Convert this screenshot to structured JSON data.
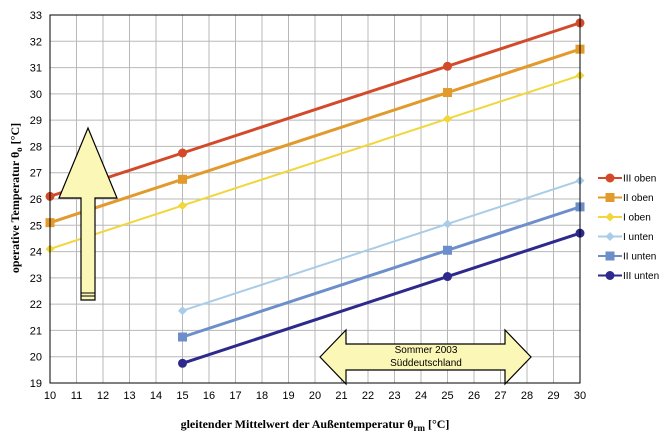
{
  "chart_data": {
    "type": "line",
    "xlabel_main": "gleitender Mittelwert der Außentemperatur θ",
    "xlabel_sub": "rm",
    "xlabel_unit": " [°C]",
    "ylabel_main": "operative Temperatur θ",
    "ylabel_sub": "o",
    "ylabel_unit": " [°C]",
    "xlim": [
      10,
      30
    ],
    "ylim": [
      19,
      33
    ],
    "x_ticks": [
      10,
      11,
      12,
      13,
      14,
      15,
      16,
      17,
      18,
      19,
      20,
      21,
      22,
      23,
      24,
      25,
      26,
      27,
      28,
      29,
      30
    ],
    "y_ticks": [
      19,
      20,
      21,
      22,
      23,
      24,
      25,
      26,
      27,
      28,
      29,
      30,
      31,
      32,
      33
    ],
    "grid": true,
    "legend_position": "right",
    "series": [
      {
        "name": "III oben",
        "color": "#d24a2a",
        "marker": "circle",
        "width": 3,
        "x": [
          10,
          15,
          25,
          30
        ],
        "y": [
          26.1,
          27.75,
          31.05,
          32.7
        ]
      },
      {
        "name": "II  oben",
        "color": "#e39a2c",
        "marker": "square",
        "width": 3,
        "x": [
          10,
          15,
          25,
          30
        ],
        "y": [
          25.1,
          26.75,
          30.05,
          31.7
        ]
      },
      {
        "name": "I oben",
        "color": "#f1d63c",
        "marker": "diamond",
        "width": 2,
        "x": [
          10,
          15,
          25,
          30
        ],
        "y": [
          24.1,
          25.75,
          29.05,
          30.7
        ]
      },
      {
        "name": "I unten",
        "color": "#a9cde8",
        "marker": "diamond",
        "width": 2,
        "x": [
          15,
          25,
          30
        ],
        "y": [
          21.75,
          25.05,
          26.7
        ]
      },
      {
        "name": "II unten",
        "color": "#6c8fcb",
        "marker": "square",
        "width": 3,
        "x": [
          15,
          25,
          30
        ],
        "y": [
          20.75,
          24.05,
          25.7
        ]
      },
      {
        "name": "III unten",
        "color": "#2e2a8c",
        "marker": "circle",
        "width": 3,
        "x": [
          15,
          25,
          30
        ],
        "y": [
          19.75,
          23.05,
          24.7
        ]
      }
    ],
    "annotations": {
      "range_label_line1": "Sommer 2003",
      "range_label_line2": "Süddeutschland",
      "range_x": [
        21,
        28
      ],
      "arrow_fill": "#fbf7b6"
    }
  }
}
